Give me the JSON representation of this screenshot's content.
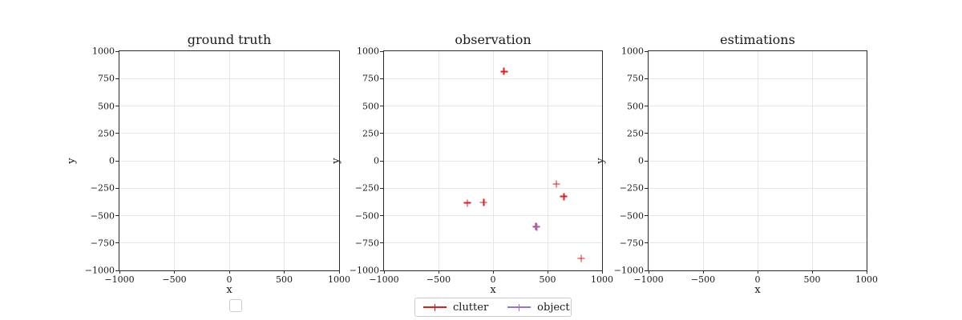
{
  "figure": {
    "background": "#ffffff",
    "spine_color": "#2b2b2b",
    "grid_color": "#e6e6e6"
  },
  "chart_data": [
    {
      "type": "scatter",
      "title": "ground truth",
      "xlabel": "x",
      "ylabel": "y",
      "xlim": [
        -1000,
        1000
      ],
      "ylim": [
        -1000,
        1000
      ],
      "xticks": [
        -1000,
        -500,
        0,
        500,
        1000
      ],
      "xtick_labels": [
        "−1000",
        "−500",
        "0",
        "500",
        "1000"
      ],
      "yticks": [
        -1000,
        -750,
        -500,
        -250,
        0,
        250,
        500,
        750,
        1000
      ],
      "ytick_labels": [
        "−1000",
        "−750",
        "−500",
        "−250",
        "0",
        "250",
        "500",
        "750",
        "1000"
      ],
      "grid": true,
      "series": []
    },
    {
      "type": "scatter",
      "title": "observation",
      "xlabel": "x",
      "ylabel": "y",
      "xlim": [
        -1000,
        1000
      ],
      "ylim": [
        -1000,
        1000
      ],
      "xticks": [
        -1000,
        -500,
        0,
        500,
        1000
      ],
      "xtick_labels": [
        "−1000",
        "−500",
        "0",
        "500",
        "1000"
      ],
      "yticks": [
        -1000,
        -750,
        -500,
        -250,
        0,
        250,
        500,
        750,
        1000
      ],
      "ytick_labels": [
        "−1000",
        "−750",
        "−500",
        "−250",
        "0",
        "250",
        "500",
        "750",
        "1000"
      ],
      "grid": true,
      "series": [
        {
          "name": "clutter",
          "marker": "+",
          "color": "#dd1c1c",
          "points": [
            [
              100,
              815
            ],
            [
              -235,
              -385
            ],
            [
              -85,
              -380
            ],
            [
              580,
              -210
            ],
            [
              650,
              -325
            ],
            [
              395,
              -600
            ],
            [
              810,
              -890
            ]
          ]
        },
        {
          "name": "object",
          "marker": "+",
          "color": "#9b70d2",
          "points": [
            [
              400,
              -607
            ]
          ]
        }
      ]
    },
    {
      "type": "scatter",
      "title": "estimations",
      "xlabel": "x",
      "ylabel": "y",
      "xlim": [
        -1000,
        1000
      ],
      "ylim": [
        -1000,
        1000
      ],
      "xticks": [
        -1000,
        -500,
        0,
        500,
        1000
      ],
      "xtick_labels": [
        "−1000",
        "−500",
        "0",
        "500",
        "1000"
      ],
      "yticks": [
        -1000,
        -750,
        -500,
        -250,
        0,
        250,
        500,
        750,
        1000
      ],
      "ytick_labels": [
        "−1000",
        "−750",
        "−500",
        "−250",
        "0",
        "250",
        "500",
        "750",
        "1000"
      ],
      "grid": true,
      "series": []
    }
  ],
  "legend": {
    "position": "bottom-center",
    "entries": [
      {
        "label": "clutter",
        "marker": "+",
        "color": "#dd1c1c"
      },
      {
        "label": "object",
        "marker": "+",
        "color": "#9b70d2"
      }
    ]
  }
}
